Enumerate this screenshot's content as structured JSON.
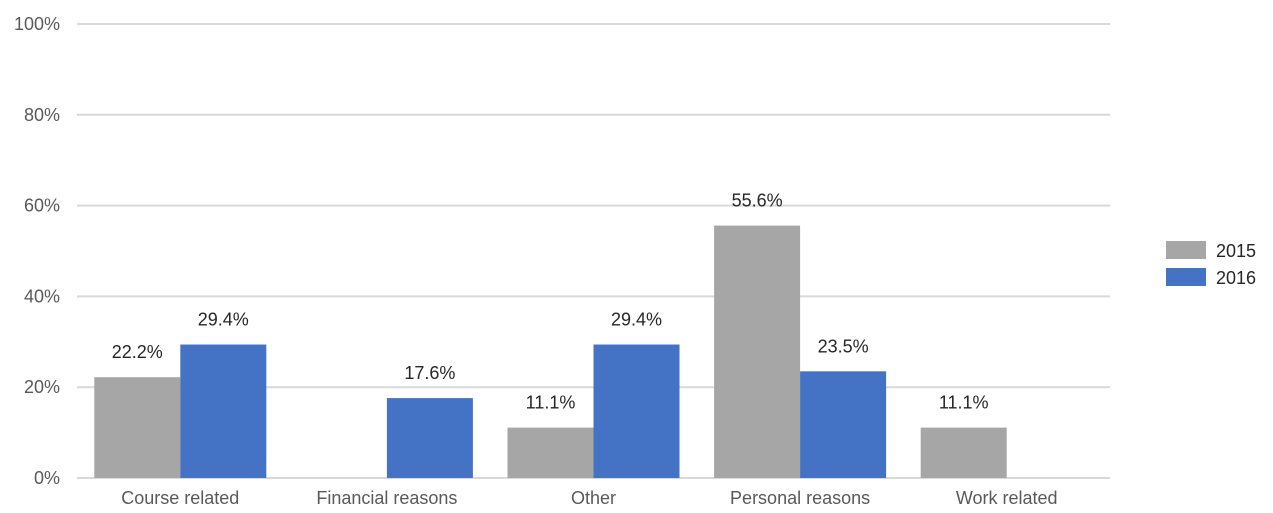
{
  "chart_data": {
    "type": "bar",
    "categories": [
      "Course related",
      "Financial reasons",
      "Other",
      "Personal reasons",
      "Work related"
    ],
    "series": [
      {
        "name": "2015",
        "color": "#a6a6a6",
        "values": [
          22.2,
          null,
          11.1,
          55.6,
          11.1
        ],
        "labels": [
          "22.2%",
          "",
          "11.1%",
          "55.6%",
          "11.1%"
        ]
      },
      {
        "name": "2016",
        "color": "#4472c4",
        "values": [
          29.4,
          17.6,
          29.4,
          23.5,
          null
        ],
        "labels": [
          "29.4%",
          "17.6%",
          "29.4%",
          "23.5%",
          ""
        ]
      }
    ],
    "ylim": [
      0,
      100
    ],
    "yticks": [
      0,
      20,
      40,
      60,
      80,
      100
    ],
    "ytick_labels": [
      "0%",
      "20%",
      "40%",
      "60%",
      "80%",
      "100%"
    ],
    "grid": true,
    "legend_position": "right",
    "title": "",
    "xlabel": "",
    "ylabel": ""
  }
}
